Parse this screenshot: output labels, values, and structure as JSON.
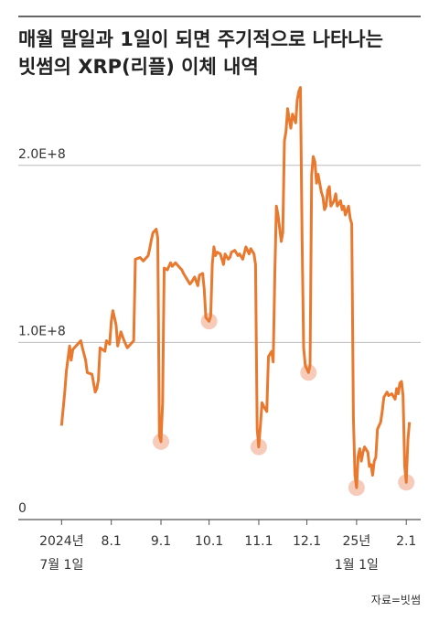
{
  "chart_data": {
    "type": "line",
    "title": [
      "매월 말일과 1일이 되면 주기적으로 나타나는",
      "빗썸의 XRP(리플) 이체 내역"
    ],
    "source": "자료=빗썸",
    "x": [
      0,
      2,
      3,
      5,
      6,
      7,
      10,
      12,
      13,
      15,
      16,
      19,
      21,
      22,
      23,
      24,
      27,
      28,
      30,
      31,
      32,
      34,
      35,
      37,
      39,
      41,
      44,
      45,
      46,
      49,
      51,
      52,
      54,
      55,
      56,
      57,
      59,
      60,
      61,
      62,
      63,
      64,
      66,
      68,
      69,
      71,
      73,
      75,
      76,
      78,
      80,
      81,
      83,
      85,
      86,
      88,
      89,
      90,
      92,
      93,
      94,
      95,
      96,
      97,
      99,
      101,
      102,
      104,
      105,
      106,
      108,
      110,
      111,
      113,
      115,
      117,
      118,
      120,
      121,
      122,
      123,
      124,
      125,
      126,
      128,
      129,
      131,
      132,
      133,
      134,
      135,
      137,
      138,
      139,
      140,
      141,
      142,
      143,
      144,
      146,
      147,
      148,
      149,
      150,
      151,
      152,
      154,
      155,
      156,
      157,
      158,
      159,
      160,
      162,
      163,
      164,
      165,
      166,
      167,
      168,
      170,
      171,
      172,
      174,
      175,
      176,
      177,
      179,
      180,
      181,
      182,
      183,
      184,
      185,
      186,
      187,
      188,
      189,
      191,
      192,
      193,
      194,
      195,
      196,
      197,
      199,
      200,
      201,
      203,
      204,
      206,
      208,
      209,
      210,
      211,
      212,
      213,
      214,
      215,
      216,
      217
    ],
    "series": [
      {
        "name": "XRP",
        "color": "#e8792e",
        "values": [
          53000000.0,
          72000000.0,
          84000000.0,
          98000000.0,
          90000000.0,
          96000000.0,
          99000000.0,
          101000000.0,
          97000000.0,
          90000000.0,
          83000000.0,
          82000000.0,
          72000000.0,
          74000000.0,
          79000000.0,
          97000000.0,
          95000000.0,
          101000000.0,
          99000000.0,
          112000000.0,
          118000000.0,
          110000000.0,
          98000000.0,
          106000000.0,
          101000000.0,
          97000000.0,
          100000000.0,
          101000000.0,
          147000000.0,
          148000000.0,
          146000000.0,
          147000000.0,
          149000000.0,
          153000000.0,
          158000000.0,
          162000000.0,
          164000000.0,
          159000000.0,
          47000000.0,
          44000000.0,
          66000000.0,
          142000000.0,
          141000000.0,
          145000000.0,
          143000000.0,
          145000000.0,
          143000000.0,
          141000000.0,
          139000000.0,
          136000000.0,
          133000000.0,
          134000000.0,
          137000000.0,
          132000000.0,
          138000000.0,
          139000000.0,
          130000000.0,
          114000000.0,
          112000000.0,
          115000000.0,
          144000000.0,
          154000000.0,
          149000000.0,
          151000000.0,
          150000000.0,
          144000000.0,
          150000000.0,
          147000000.0,
          148000000.0,
          151000000.0,
          152000000.0,
          149000000.0,
          150000000.0,
          147000000.0,
          154000000.0,
          150000000.0,
          153000000.0,
          150000000.0,
          144000000.0,
          51000000.0,
          41000000.0,
          53000000.0,
          66000000.0,
          64000000.0,
          61000000.0,
          92000000.0,
          95000000.0,
          89000000.0,
          139000000.0,
          177000000.0,
          172000000.0,
          157000000.0,
          162000000.0,
          214000000.0,
          219000000.0,
          232000000.0,
          226000000.0,
          221000000.0,
          229000000.0,
          224000000.0,
          237000000.0,
          242000000.0,
          244000000.0,
          159000000.0,
          97000000.0,
          87000000.0,
          83000000.0,
          87000000.0,
          195000000.0,
          205000000.0,
          202000000.0,
          190000000.0,
          195000000.0,
          185000000.0,
          182000000.0,
          175000000.0,
          177000000.0,
          186000000.0,
          188000000.0,
          177000000.0,
          180000000.0,
          184000000.0,
          177000000.0,
          180000000.0,
          175000000.0,
          177000000.0,
          172000000.0,
          177000000.0,
          170000000.0,
          167000000.0,
          58000000.0,
          25000000.0,
          18000000.0,
          36000000.0,
          40000000.0,
          33000000.0,
          38000000.0,
          41000000.0,
          38000000.0,
          30000000.0,
          31000000.0,
          25000000.0,
          33000000.0,
          35000000.0,
          51000000.0,
          55000000.0,
          61000000.0,
          69000000.0,
          72000000.0,
          70000000.0,
          71000000.0,
          68000000.0,
          74000000.0,
          71000000.0,
          77000000.0,
          78000000.0,
          70000000.0,
          30000000.0,
          21000000.0,
          45000000.0,
          55000000.0
        ]
      }
    ],
    "highlights": {
      "color": "#f4c2ad",
      "x": [
        62,
        92,
        123,
        154,
        184,
        215
      ]
    },
    "xlim": [
      -27,
      224
    ],
    "xticks": [
      {
        "value": 0,
        "label": [
          "2024년",
          "7월 1일"
        ]
      },
      {
        "value": 31,
        "label": "8.1"
      },
      {
        "value": 62,
        "label": "9.1"
      },
      {
        "value": 92,
        "label": "10.1"
      },
      {
        "value": 123,
        "label": "11.1"
      },
      {
        "value": 153,
        "label": "12.1"
      },
      {
        "value": 184,
        "label": [
          "25년",
          "1월 1일"
        ]
      },
      {
        "value": 215,
        "label": "2.1"
      }
    ],
    "ylim": [
      0,
      250000000.0
    ],
    "yticks": [
      0,
      {
        "value": 100000000.0,
        "label": "1.0E+8"
      },
      {
        "value": 200000000.0,
        "label": "2.0E+8"
      }
    ],
    "grid": true
  }
}
